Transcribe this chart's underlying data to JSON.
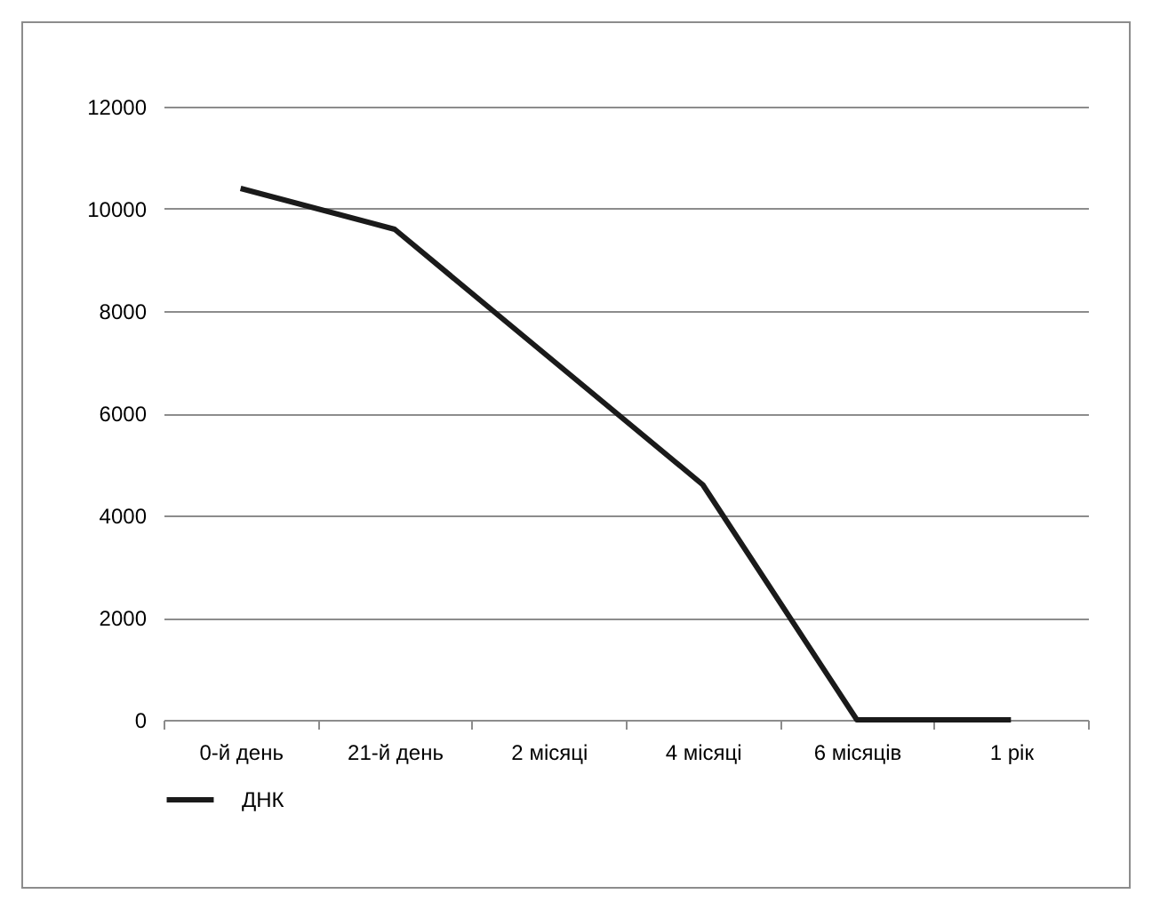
{
  "chart_data": {
    "type": "line",
    "categories": [
      "0-й день",
      "21-й день",
      "2 місяці",
      "4 місяці",
      "6 місяців",
      "1 рік"
    ],
    "series": [
      {
        "name": "ДНК",
        "color": "#1a1a1a",
        "values": [
          10400,
          9600,
          7100,
          4600,
          0,
          0
        ]
      }
    ],
    "ylim": [
      0,
      12000
    ],
    "yticks": [
      0,
      2000,
      4000,
      6000,
      8000,
      10000,
      12000
    ],
    "grid": "y",
    "legend": "bottom left",
    "marker": "none",
    "line_style": "solid"
  }
}
